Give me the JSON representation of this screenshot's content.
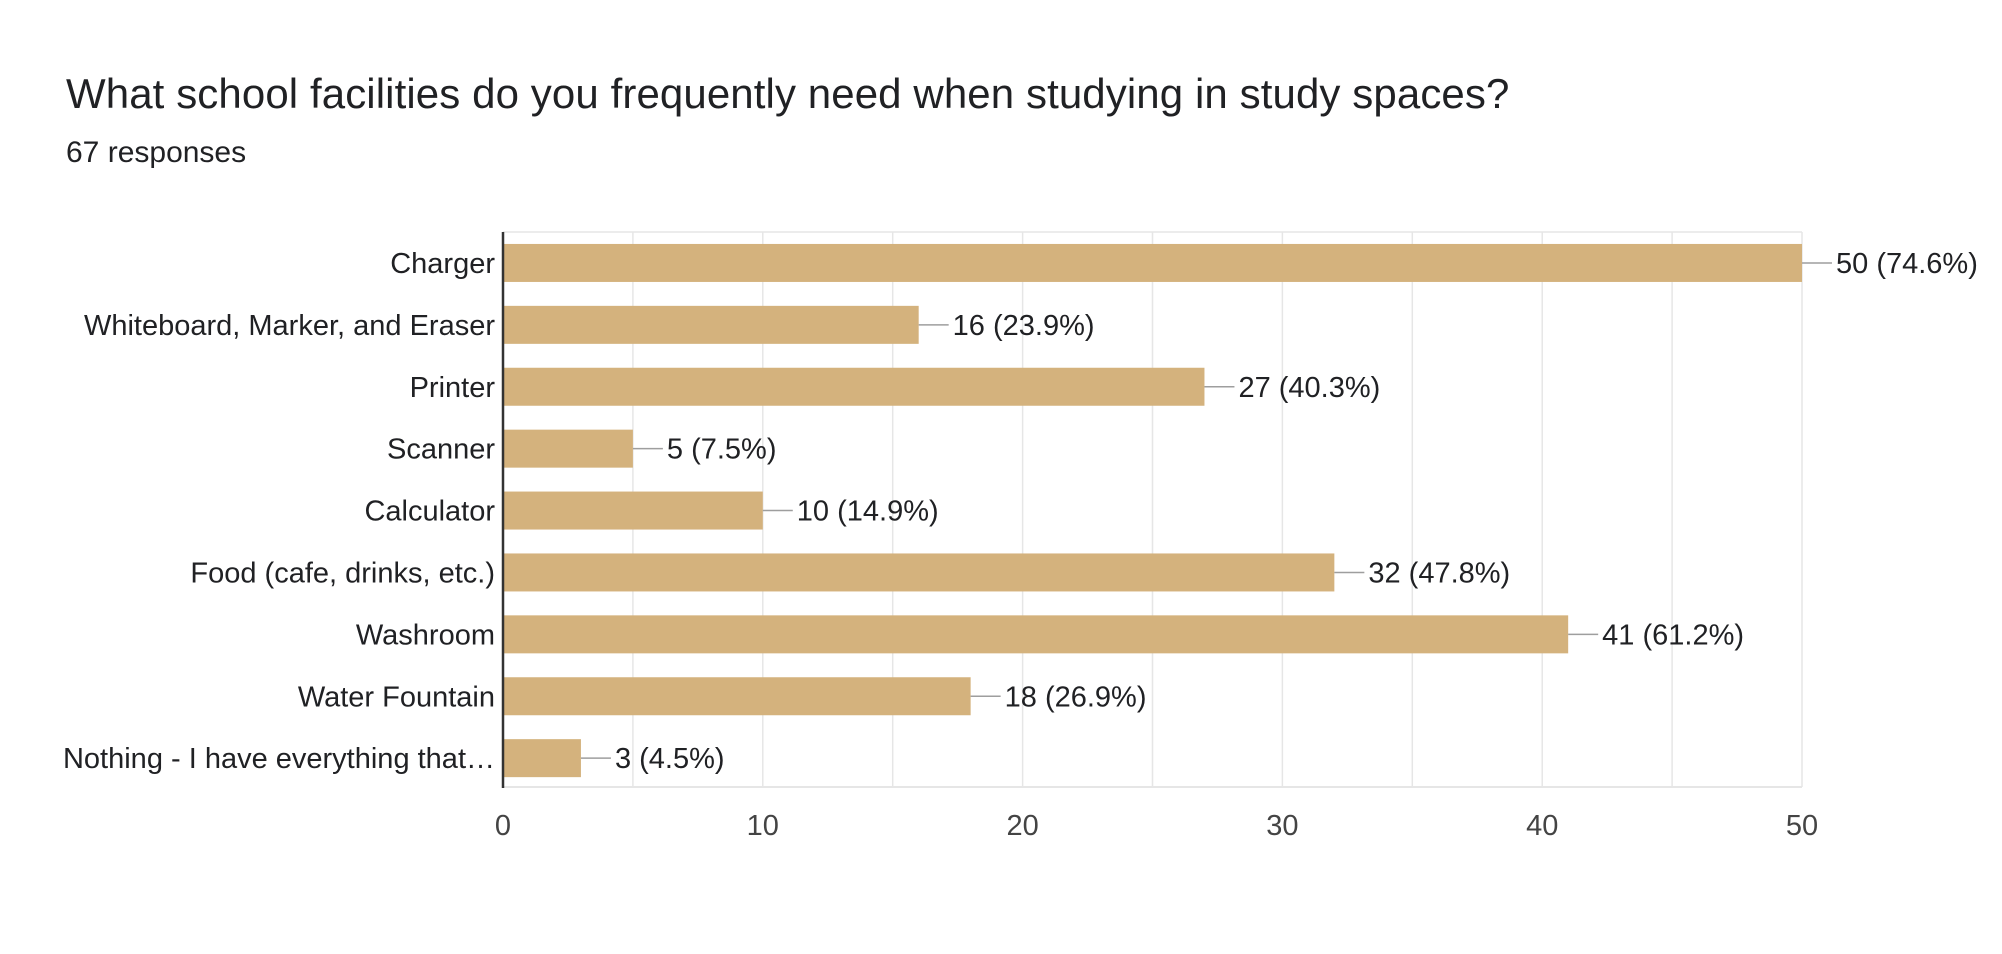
{
  "header": {
    "title": "What school facilities do you frequently need when studying in study spaces?",
    "subtitle": "67 responses"
  },
  "chart_data": {
    "type": "bar",
    "orientation": "horizontal",
    "title": "What school facilities do you frequently need when studying in study spaces?",
    "subtitle": "67 responses",
    "categories": [
      "Charger",
      "Whiteboard, Marker, and Eraser",
      "Printer",
      "Scanner",
      "Calculator",
      "Food (cafe, drinks, etc.)",
      "Washroom",
      "Water Fountain",
      "Nothing - I have everything that…"
    ],
    "values": [
      50,
      16,
      27,
      5,
      10,
      32,
      41,
      18,
      3
    ],
    "data_labels": [
      "50 (74.6%)",
      "16 (23.9%)",
      "27 (40.3%)",
      "5 (7.5%)",
      "10 (14.9%)",
      "32 (47.8%)",
      "41 (61.2%)",
      "18 (26.9%)",
      "3 (4.5%)"
    ],
    "xlim": [
      0,
      50
    ],
    "xticks": [
      "0",
      "10",
      "20",
      "30",
      "40",
      "50"
    ],
    "xtick_values": [
      0,
      10,
      20,
      30,
      40,
      50
    ],
    "minor_grid_step": 5,
    "xlabel": "",
    "ylabel": "",
    "grid": true,
    "legend": "none",
    "colors": {
      "bar": "#d4b27d",
      "grid": "#e6e6e6",
      "axis": "#333333",
      "leader": "#9e9e9e",
      "text": "#202124",
      "tick_text": "#444444"
    }
  }
}
